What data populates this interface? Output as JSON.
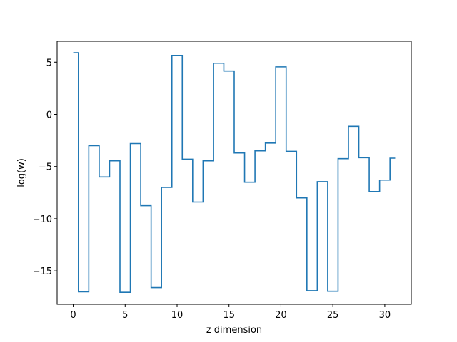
{
  "chart_data": {
    "type": "line",
    "style": "step-mid",
    "title": "",
    "xlabel": "z dimension",
    "ylabel": "log(w)",
    "xlim": [
      -1.55,
      32.55
    ],
    "ylim": [
      -18.2,
      7.0
    ],
    "xticks": [
      0,
      5,
      10,
      15,
      20,
      25,
      30
    ],
    "yticks": [
      -15,
      -10,
      -5,
      0,
      5
    ],
    "ytick_labels": [
      "−15",
      "−10",
      "−5",
      "0",
      "5"
    ],
    "grid": false,
    "legend": "none",
    "series": [
      {
        "color": "#1f77b4",
        "x": [
          0,
          1,
          2,
          3,
          4,
          5,
          6,
          7,
          8,
          9,
          10,
          11,
          12,
          13,
          14,
          15,
          16,
          17,
          18,
          19,
          20,
          21,
          22,
          23,
          24,
          25,
          26,
          27,
          28,
          29,
          30,
          31
        ],
        "y": [
          5.9,
          -17.0,
          -3.0,
          -6.0,
          -4.45,
          -17.05,
          -2.8,
          -8.75,
          -16.6,
          -7.0,
          5.65,
          -4.3,
          -8.4,
          -4.45,
          4.9,
          4.15,
          -3.7,
          -6.5,
          -3.5,
          -2.75,
          4.55,
          -3.55,
          -8.0,
          -16.9,
          -6.45,
          -16.95,
          -4.25,
          -1.15,
          -4.15,
          -7.4,
          -6.3,
          -4.2
        ]
      }
    ]
  }
}
